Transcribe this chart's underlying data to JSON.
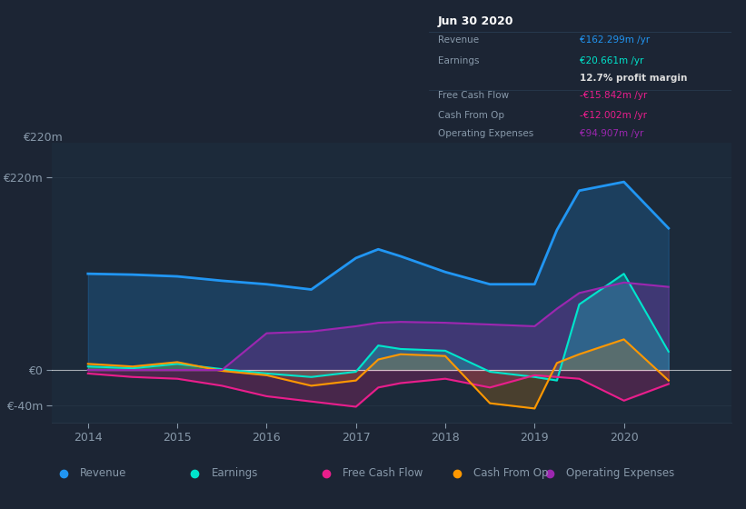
{
  "bg_color": "#1c2534",
  "plot_bg_color": "#1c2a3a",
  "grid_color": "#263545",
  "text_color": "#8899aa",
  "zero_line_color": "#ffffff",
  "years": [
    2014,
    2014.5,
    2015,
    2015.5,
    2016,
    2016.5,
    2017,
    2017.25,
    2017.5,
    2018,
    2018.5,
    2019,
    2019.25,
    2019.5,
    2020,
    2020.5
  ],
  "revenue": [
    110,
    109,
    107,
    102,
    98,
    92,
    128,
    138,
    130,
    112,
    98,
    98,
    160,
    205,
    215,
    162
  ],
  "earnings": [
    4,
    2,
    7,
    1,
    -4,
    -8,
    -2,
    28,
    24,
    22,
    -2,
    -8,
    -12,
    75,
    110,
    21
  ],
  "free_cash_flow": [
    -4,
    -8,
    -10,
    -18,
    -30,
    -36,
    -42,
    -20,
    -15,
    -10,
    -20,
    -6,
    -8,
    -10,
    -35,
    -16
  ],
  "cash_from_op": [
    7,
    4,
    9,
    -1,
    -6,
    -18,
    -12,
    12,
    18,
    16,
    -38,
    -44,
    8,
    18,
    35,
    -12
  ],
  "op_expenses": [
    0,
    0,
    0,
    0,
    42,
    44,
    50,
    54,
    55,
    54,
    52,
    50,
    70,
    88,
    100,
    95
  ],
  "revenue_color": "#2196f3",
  "earnings_color": "#00e5cc",
  "free_cash_flow_color": "#e91e8c",
  "cash_from_op_color": "#ff9800",
  "op_expenses_color": "#9c27b0",
  "ylim": [
    -60,
    260
  ],
  "yticks": [
    -40,
    0,
    220
  ],
  "ytick_labels": [
    "€-40m",
    "€0",
    "€220m"
  ],
  "xlim": [
    2013.6,
    2021.2
  ],
  "xticks": [
    2014,
    2015,
    2016,
    2017,
    2018,
    2019,
    2020
  ],
  "legend_items": [
    "Revenue",
    "Earnings",
    "Free Cash Flow",
    "Cash From Op",
    "Operating Expenses"
  ],
  "legend_colors": [
    "#2196f3",
    "#00e5cc",
    "#e91e8c",
    "#ff9800",
    "#9c27b0"
  ],
  "tooltip_title": "Jun 30 2020",
  "tooltip_bg": "#0d1117",
  "tooltip_border": "#2a3d52",
  "tooltip_rows": [
    {
      "label": "Revenue",
      "value": "€162.299m /yr",
      "value_color": "#2196f3",
      "divider_after": false
    },
    {
      "label": "Earnings",
      "value": "€20.661m /yr",
      "value_color": "#00e5cc",
      "divider_after": false
    },
    {
      "label": "",
      "value": "12.7% profit margin",
      "value_color": "#dddddd",
      "divider_after": true
    },
    {
      "label": "Free Cash Flow",
      "value": "-€15.842m /yr",
      "value_color": "#e91e8c",
      "divider_after": false
    },
    {
      "label": "Cash From Op",
      "value": "-€12.002m /yr",
      "value_color": "#e91e8c",
      "divider_after": false
    },
    {
      "label": "Operating Expenses",
      "value": "€94.907m /yr",
      "value_color": "#9c27b0",
      "divider_after": false
    }
  ]
}
